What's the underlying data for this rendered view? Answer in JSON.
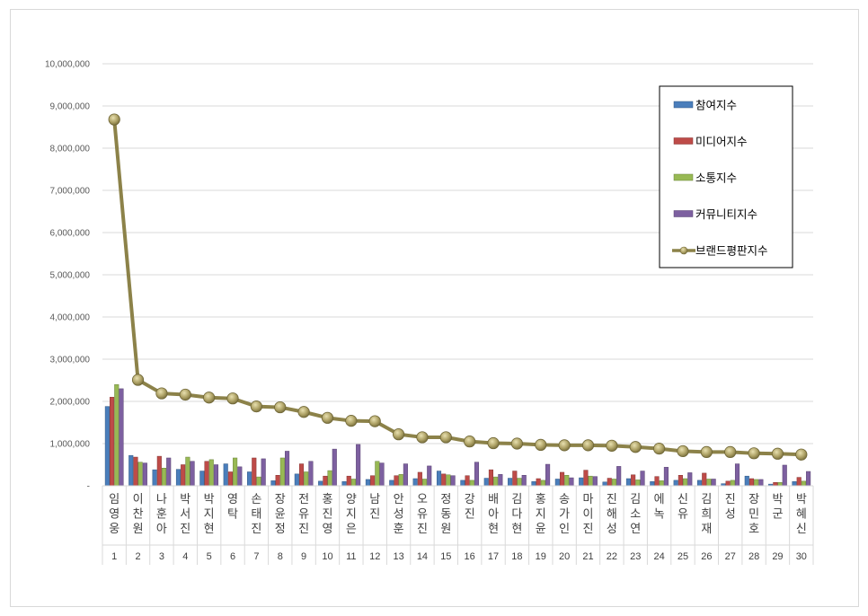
{
  "chart_data": {
    "type": "bar",
    "ylim": [
      0,
      10000000
    ],
    "yticks": [
      "-",
      "1,000,000",
      "2,000,000",
      "3,000,000",
      "4,000,000",
      "5,000,000",
      "6,000,000",
      "7,000,000",
      "8,000,000",
      "9,000,000",
      "10,000,000"
    ],
    "categories": [
      "임영웅",
      "이찬원",
      "나훈아",
      "박서진",
      "박지현",
      "영탁",
      "손태진",
      "장윤정",
      "전유진",
      "홍진영",
      "양지은",
      "남진",
      "안성훈",
      "오유진",
      "정동원",
      "강진",
      "배아현",
      "김다현",
      "홍지윤",
      "송가인",
      "마이진",
      "진해성",
      "김소연",
      "에녹",
      "신유",
      "김희재",
      "진성",
      "장민호",
      "박군",
      "박혜신"
    ],
    "ranks": [
      "1",
      "2",
      "3",
      "4",
      "5",
      "6",
      "7",
      "8",
      "9",
      "10",
      "11",
      "12",
      "13",
      "14",
      "15",
      "16",
      "17",
      "18",
      "19",
      "20",
      "21",
      "22",
      "23",
      "24",
      "25",
      "26",
      "27",
      "28",
      "29",
      "30"
    ],
    "series": [
      {
        "name": "참여지수",
        "color": "#4a7ebb",
        "values": [
          1880000,
          720000,
          380000,
          390000,
          350000,
          520000,
          330000,
          120000,
          280000,
          110000,
          100000,
          150000,
          130000,
          170000,
          350000,
          130000,
          180000,
          180000,
          100000,
          160000,
          190000,
          90000,
          170000,
          100000,
          130000,
          130000,
          50000,
          230000,
          40000,
          100000
        ]
      },
      {
        "name": "미디어지수",
        "color": "#be4b48",
        "values": [
          2100000,
          680000,
          700000,
          500000,
          580000,
          330000,
          660000,
          250000,
          520000,
          230000,
          230000,
          240000,
          240000,
          320000,
          280000,
          240000,
          380000,
          350000,
          170000,
          320000,
          370000,
          180000,
          260000,
          220000,
          250000,
          300000,
          110000,
          170000,
          80000,
          200000
        ]
      },
      {
        "name": "소통지수",
        "color": "#98b954",
        "values": [
          2400000,
          560000,
          420000,
          680000,
          620000,
          660000,
          210000,
          660000,
          330000,
          360000,
          160000,
          580000,
          270000,
          160000,
          260000,
          130000,
          210000,
          180000,
          130000,
          250000,
          230000,
          160000,
          140000,
          120000,
          170000,
          160000,
          130000,
          150000,
          80000,
          110000
        ]
      },
      {
        "name": "커뮤니티지수",
        "color": "#7d60a0",
        "values": [
          2300000,
          540000,
          660000,
          580000,
          500000,
          450000,
          640000,
          820000,
          580000,
          870000,
          980000,
          540000,
          520000,
          470000,
          240000,
          560000,
          270000,
          250000,
          510000,
          190000,
          220000,
          460000,
          350000,
          440000,
          310000,
          160000,
          520000,
          150000,
          490000,
          340000
        ]
      },
      {
        "name": "브랜드평판지수",
        "color": "#8c8249",
        "values": [
          8680000,
          2510000,
          2190000,
          2160000,
          2090000,
          2070000,
          1880000,
          1860000,
          1750000,
          1610000,
          1540000,
          1530000,
          1220000,
          1150000,
          1150000,
          1050000,
          1010000,
          1000000,
          970000,
          960000,
          960000,
          950000,
          920000,
          880000,
          820000,
          800000,
          800000,
          770000,
          760000,
          740000
        ]
      }
    ]
  }
}
